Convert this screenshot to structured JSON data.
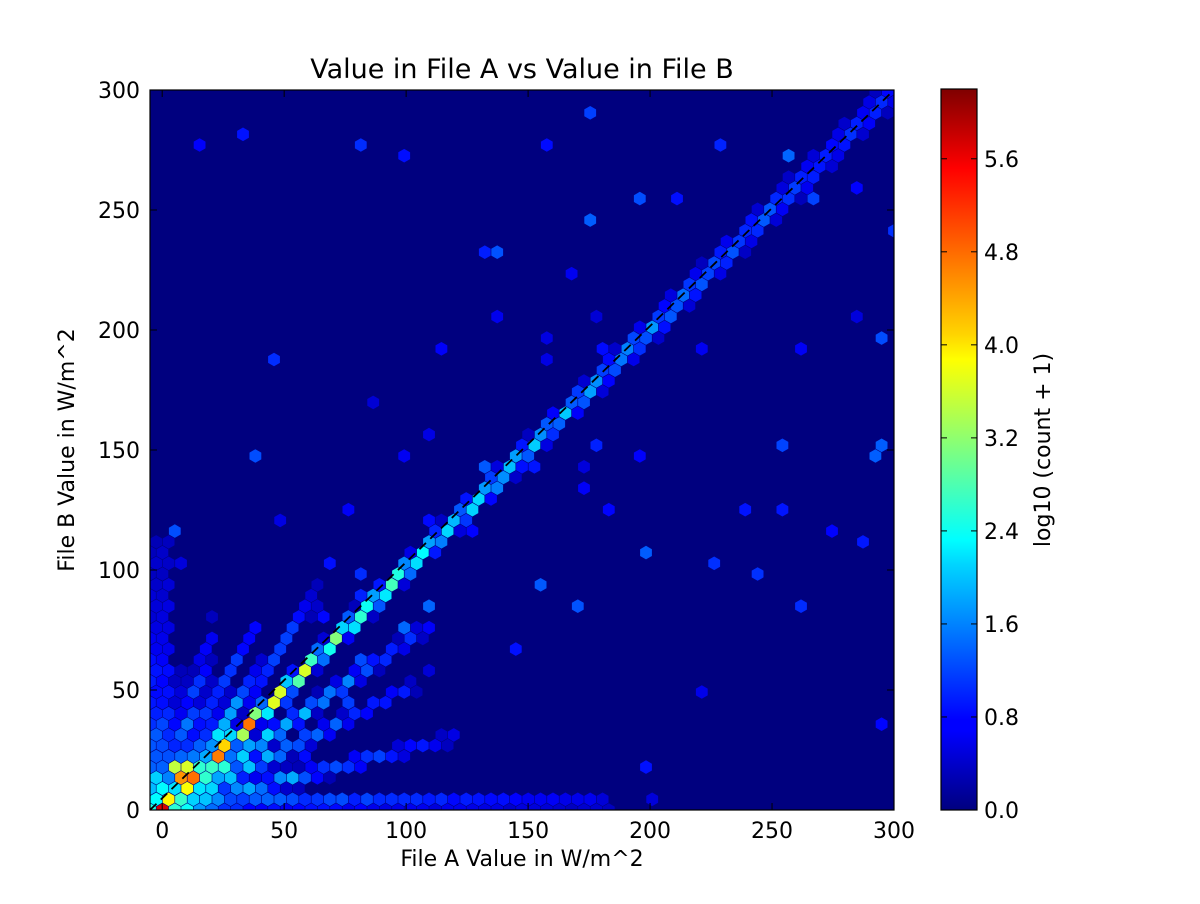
{
  "chart_data": {
    "type": "heatmap",
    "subtype": "hexbin",
    "title": "Value in File A vs Value in File B",
    "xlabel": "File A Value in W/m^2",
    "ylabel": "File B Value in W/m^2",
    "xlim": [
      -5,
      300
    ],
    "ylim": [
      0,
      300
    ],
    "x_ticks": [
      0,
      50,
      100,
      150,
      200,
      250,
      300
    ],
    "y_ticks": [
      0,
      50,
      100,
      150,
      200,
      250,
      300
    ],
    "colormap": "jet",
    "background_color": "#00007f",
    "reference_line": {
      "style": "dashed",
      "color": "#000000",
      "from": [
        -5,
        -5
      ],
      "to": [
        300,
        300
      ]
    },
    "colorbar": {
      "label": "log10 (count + 1)",
      "range": [
        0.0,
        6.2
      ],
      "ticks": [
        "0.0",
        "0.8",
        "1.6",
        "2.4",
        "3.2",
        "4.0",
        "4.8",
        "5.6"
      ]
    },
    "density_structure": {
      "main_diagonal": [
        {
          "x": 0,
          "y": 0,
          "value": 5.9
        },
        {
          "x": 5,
          "y": 5,
          "value": 5.7
        },
        {
          "x": 10,
          "y": 10,
          "value": 5.3
        },
        {
          "x": 15,
          "y": 15,
          "value": 5.0
        },
        {
          "x": 20,
          "y": 20,
          "value": 4.6
        },
        {
          "x": 30,
          "y": 30,
          "value": 4.3
        },
        {
          "x": 40,
          "y": 40,
          "value": 4.0
        },
        {
          "x": 50,
          "y": 50,
          "value": 3.8
        },
        {
          "x": 60,
          "y": 60,
          "value": 3.6
        },
        {
          "x": 70,
          "y": 70,
          "value": 3.2
        },
        {
          "x": 80,
          "y": 80,
          "value": 3.0
        },
        {
          "x": 90,
          "y": 90,
          "value": 2.8
        },
        {
          "x": 100,
          "y": 100,
          "value": 2.6
        },
        {
          "x": 120,
          "y": 120,
          "value": 2.3
        },
        {
          "x": 140,
          "y": 140,
          "value": 2.0
        },
        {
          "x": 160,
          "y": 160,
          "value": 1.8
        },
        {
          "x": 180,
          "y": 180,
          "value": 1.6
        },
        {
          "x": 200,
          "y": 200,
          "value": 1.5
        },
        {
          "x": 220,
          "y": 220,
          "value": 1.3
        },
        {
          "x": 240,
          "y": 240,
          "value": 1.2
        },
        {
          "x": 260,
          "y": 260,
          "value": 1.1
        },
        {
          "x": 280,
          "y": 280,
          "value": 1.0
        },
        {
          "x": 295,
          "y": 295,
          "value": 0.9
        }
      ],
      "hotspot": {
        "x": 8,
        "y": 16,
        "value": 5.6
      },
      "spokes": [
        {
          "slope": 0.25,
          "x_max": 120,
          "peak": 2.4
        },
        {
          "slope": 0.5,
          "x_max": 105,
          "peak": 2.5
        },
        {
          "slope": 0.7,
          "x_max": 110,
          "peak": 2.8
        },
        {
          "slope": 1.4,
          "x_max": 65,
          "peak": 2.6
        },
        {
          "slope": 2.0,
          "x_max": 40,
          "peak": 2.2
        },
        {
          "slope": 3.5,
          "x_max": 22,
          "peak": 2.0
        }
      ],
      "bottom_band": {
        "y": 3,
        "x_max": 185,
        "peak": 1.6
      }
    }
  }
}
